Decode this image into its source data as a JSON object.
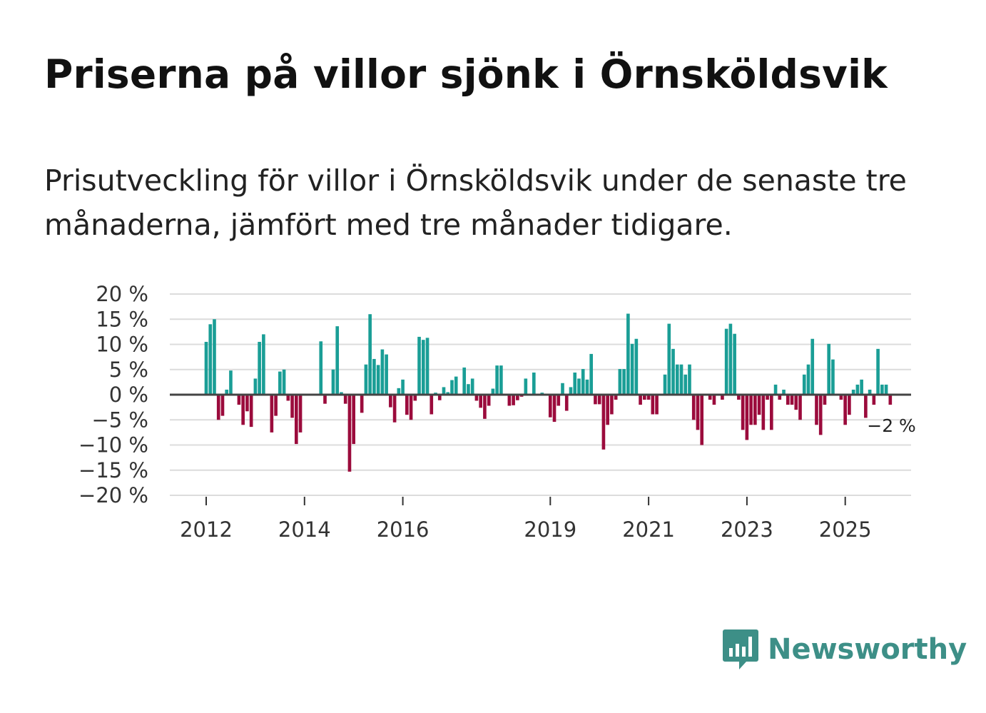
{
  "header": {
    "title": "Priserna på villor sjönk i Örnsköldsvik",
    "subtitle": "Prisutveckling för villor i Örnsköldsvik under de senaste tre månaderna, jämfört med tre månader tidigare."
  },
  "brand": {
    "name": "Newsworthy",
    "icon": "chart-bars-icon"
  },
  "colors": {
    "positive": "#1a9e96",
    "negative": "#9b0b3c",
    "grid": "#dcdcdc",
    "zero_line": "#444444"
  },
  "chart_data": {
    "type": "bar",
    "title": "Priserna på villor sjönk i Örnsköldsvik",
    "xlabel": "",
    "ylabel": "",
    "ylim": [
      -20,
      20
    ],
    "yticks": [
      20,
      15,
      10,
      5,
      0,
      -5,
      -10,
      -15,
      -20
    ],
    "ytick_labels": [
      "20 %",
      "15 %",
      "10 %",
      "5 %",
      "0 %",
      "−5 %",
      "−10 %",
      "−15 %",
      "−20 %"
    ],
    "x_start": 2012.0,
    "x_step": 0.08333,
    "xticks": [
      2012,
      2014,
      2016,
      2019,
      2021,
      2023,
      2025
    ],
    "xtick_labels": [
      "2012",
      "2014",
      "2016",
      "2019",
      "2021",
      "2023",
      "2025"
    ],
    "last_value_label": "−2 %",
    "values": [
      10.5,
      14,
      15,
      -5,
      -4.2,
      1,
      4.8,
      0,
      -2,
      -6,
      -3.3,
      -6.4,
      3.2,
      10.5,
      12,
      0,
      -7.5,
      -4.2,
      4.6,
      5,
      -1.2,
      -4.6,
      -9.8,
      -7.5,
      0,
      0,
      0,
      0,
      10.6,
      -1.8,
      0,
      5,
      13.6,
      0.5,
      -1.8,
      -15.3,
      -9.8,
      0,
      -3.6,
      6,
      16,
      7.1,
      5.9,
      9,
      8,
      -2.5,
      -5.5,
      1.3,
      3,
      -4,
      -5,
      -1.2,
      11.5,
      10.9,
      11.3,
      -3.9,
      0.4,
      -1.1,
      1.5,
      0.5,
      2.9,
      3.6,
      0,
      5.4,
      2.1,
      3.2,
      -1.2,
      -2.6,
      -4.8,
      -2.2,
      1.2,
      5.8,
      5.8,
      0,
      -2.2,
      -2.1,
      -1.1,
      -0.4,
      3.2,
      0,
      4.4,
      0,
      0.4,
      0,
      -4.5,
      -5.4,
      -2.2,
      2.3,
      -3.2,
      1.5,
      4.4,
      3.2,
      5.1,
      3,
      8.1,
      -1.9,
      -1.9,
      -10.9,
      -6,
      -3.9,
      -1,
      5.1,
      5.1,
      16.1,
      10.1,
      11.1,
      -2,
      -1,
      -1,
      -3.9,
      -3.9,
      0,
      4,
      14.1,
      9.1,
      6,
      6,
      4,
      6,
      -5,
      -7,
      -10,
      0,
      -1,
      -2,
      0,
      -1,
      13.1,
      14.1,
      12.1,
      -1,
      -7,
      -9,
      -6,
      -6,
      -4,
      -7,
      -1,
      -7,
      2,
      -1,
      1,
      -2,
      -2,
      -3,
      -5,
      4,
      6,
      11.1,
      -6,
      -8,
      -2,
      10.1,
      7,
      0,
      -1,
      -6,
      -4,
      1,
      2,
      3,
      -4.6,
      1,
      -2,
      9.1,
      2,
      2,
      -2
    ]
  }
}
